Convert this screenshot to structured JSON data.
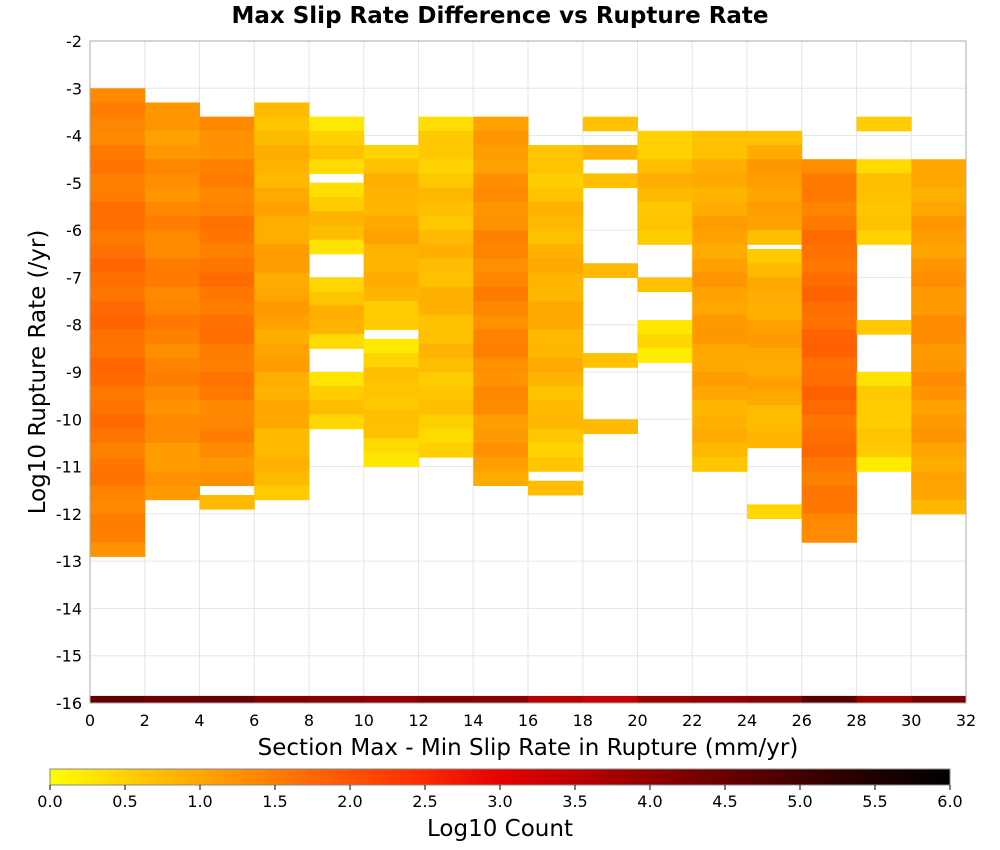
{
  "chart_data": {
    "type": "heatmap",
    "title": "Max Slip Rate Difference vs Rupture Rate",
    "xlabel": "Section Max - Min Slip Rate in Rupture (mm/yr)",
    "ylabel": "Log10 Rupture Rate (/yr)",
    "xlim": [
      0,
      32
    ],
    "ylim": [
      -16,
      -2
    ],
    "x_ticks": [
      "0",
      "2",
      "4",
      "6",
      "8",
      "10",
      "12",
      "14",
      "16",
      "18",
      "20",
      "22",
      "24",
      "26",
      "28",
      "30",
      "32"
    ],
    "y_ticks": [
      "-2",
      "-3",
      "-4",
      "-5",
      "-6",
      "-7",
      "-8",
      "-9",
      "-10",
      "-11",
      "-12",
      "-13",
      "-14",
      "-15",
      "-16"
    ],
    "grid": true,
    "x_bin_width": 2,
    "y_bin_height": 0.3,
    "colorbar": {
      "label": "Log10 Count",
      "range": [
        0,
        6
      ],
      "ticks": [
        "0.0",
        "0.5",
        "1.0",
        "1.5",
        "2.0",
        "2.5",
        "3.0",
        "3.5",
        "4.0",
        "4.5",
        "5.0",
        "5.5",
        "6.0"
      ],
      "colors": [
        "#ffff00",
        "#ffc800",
        "#ff9600",
        "#ff6400",
        "#ff3200",
        "#e60000",
        "#b40000",
        "#800000",
        "#500000",
        "#250000",
        "#000000"
      ]
    },
    "columns": [
      {
        "x": 0,
        "segments": [
          [
            -3.0,
            -13.0,
            1.35
          ]
        ],
        "bottom_row": 4.6
      },
      {
        "x": 2,
        "segments": [
          [
            -3.3,
            -11.6,
            1.1
          ]
        ],
        "bottom_row": 4.4
      },
      {
        "x": 4,
        "segments": [
          [
            -3.6,
            -11.3,
            1.25
          ],
          [
            -11.6,
            -11.9,
            0.3
          ]
        ],
        "bottom_row": 4.5
      },
      {
        "x": 6,
        "segments": [
          [
            -3.3,
            -11.6,
            0.7
          ]
        ],
        "bottom_row": 4.2
      },
      {
        "x": 8,
        "segments": [
          [
            -3.6,
            -4.8,
            0.3
          ],
          [
            -5.0,
            -6.4,
            0.4
          ],
          [
            -7.0,
            -8.6,
            0.5
          ],
          [
            -9.0,
            -10.2,
            0.35
          ]
        ],
        "bottom_row": 4.1
      },
      {
        "x": 10,
        "segments": [
          [
            -4.2,
            -8.2,
            0.6
          ],
          [
            -8.3,
            -11.0,
            0.35
          ]
        ],
        "bottom_row": 4.0
      },
      {
        "x": 12,
        "segments": [
          [
            -3.6,
            -10.7,
            0.45
          ]
        ],
        "bottom_row": 4.2
      },
      {
        "x": 14,
        "segments": [
          [
            -3.6,
            -11.3,
            1.05
          ]
        ],
        "bottom_row": 4.1
      },
      {
        "x": 16,
        "segments": [
          [
            -4.2,
            -11.0,
            0.55
          ],
          [
            -11.3,
            -11.6,
            0.3
          ]
        ],
        "bottom_row": 3.6
      },
      {
        "x": 18,
        "segments": [
          [
            -3.6,
            -3.9,
            0.2
          ],
          [
            -4.2,
            -4.5,
            0.4
          ],
          [
            -4.8,
            -5.1,
            0.25
          ],
          [
            -6.7,
            -7.0,
            0.3
          ],
          [
            -8.6,
            -8.9,
            0.2
          ],
          [
            -10.0,
            -10.4,
            0.3
          ]
        ],
        "bottom_row": 3.4
      },
      {
        "x": 20,
        "segments": [
          [
            -3.9,
            -6.4,
            0.45
          ],
          [
            -7.0,
            -7.3,
            0.3
          ],
          [
            -7.9,
            -8.8,
            0.2
          ]
        ],
        "bottom_row": 3.9
      },
      {
        "x": 22,
        "segments": [
          [
            -3.9,
            -11.0,
            0.75
          ]
        ],
        "bottom_row": 4.0
      },
      {
        "x": 24,
        "segments": [
          [
            -3.9,
            -6.4,
            0.8
          ],
          [
            -6.4,
            -10.7,
            0.7
          ],
          [
            -11.8,
            -12.1,
            0.2
          ]
        ],
        "bottom_row": 4.1
      },
      {
        "x": 26,
        "segments": [
          [
            -4.5,
            -12.7,
            1.4
          ]
        ],
        "bottom_row": 4.7
      },
      {
        "x": 28,
        "segments": [
          [
            -3.6,
            -3.9,
            0.2
          ],
          [
            -4.5,
            -6.4,
            0.4
          ],
          [
            -7.9,
            -8.2,
            0.25
          ],
          [
            -9.0,
            -11.0,
            0.3
          ]
        ],
        "bottom_row": 3.9
      },
      {
        "x": 30,
        "segments": [
          [
            -4.5,
            -12.1,
            0.9
          ]
        ],
        "bottom_row": 4.3
      }
    ]
  }
}
